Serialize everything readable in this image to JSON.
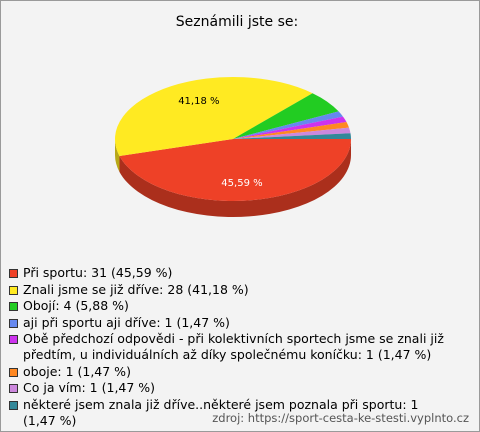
{
  "chart_data": {
    "type": "pie",
    "title": "Seznámili jste se:",
    "categories": [
      "Při sportu: 31 (45,59 %)",
      "Znali jsme se již dříve: 28 (41,18 %)",
      "Obojí: 4 (5,88 %)",
      "aji při sportu aji dříve: 1 (1,47 %)",
      "Obě předchozí odpovědi - při kolektivních sportech jsme se znali již předtím, u individuálních až díky společnému koníčku: 1 (1,47 %)",
      "oboje: 1 (1,47 %)",
      "Co ja vím: 1 (1,47 %)",
      "některé jsem znala již dříve..některé jsem poznala při sportu: 1 (1,47 %)"
    ],
    "values": [
      45.59,
      41.18,
      5.88,
      1.47,
      1.47,
      1.47,
      1.47,
      1.47
    ],
    "value_labels": [
      "45,59 %",
      "41,18 %",
      null,
      null,
      null,
      null,
      null,
      null
    ],
    "colors": [
      "#ee4127",
      "#ffea22",
      "#22cc22",
      "#6688ee",
      "#cc33ee",
      "#ff8822",
      "#cc88dd",
      "#338899"
    ],
    "source": "zdroj: https://sport-cesta-ke-stesti.vyplnto.cz"
  }
}
